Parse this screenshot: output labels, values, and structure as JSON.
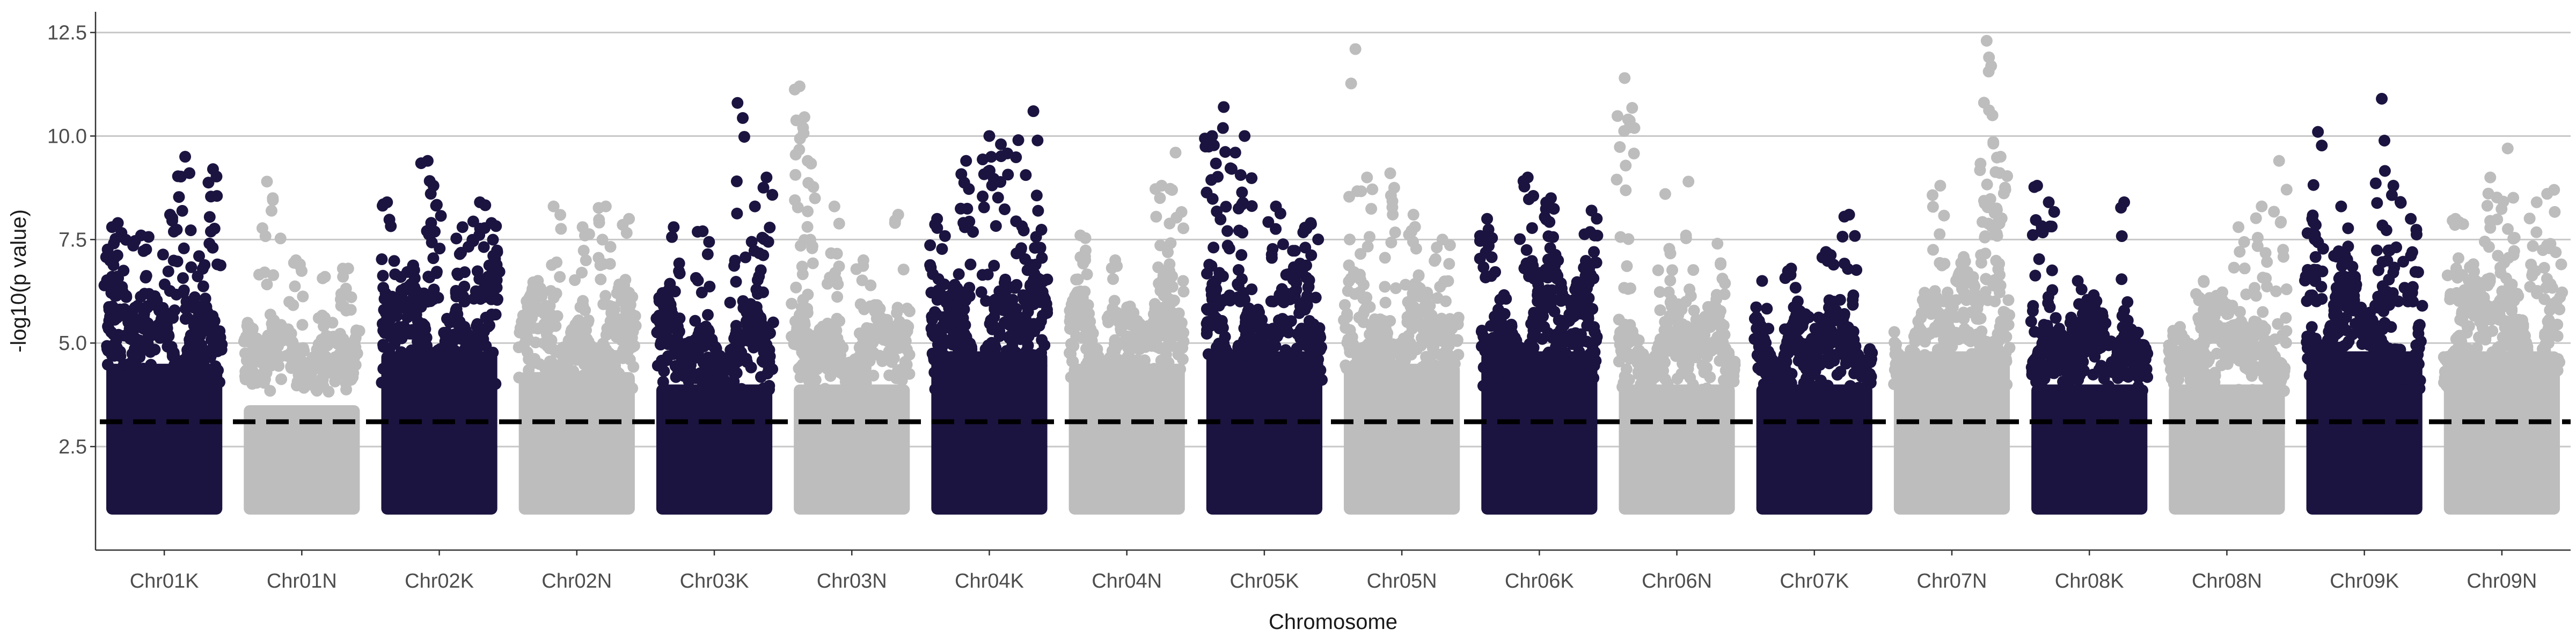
{
  "chart_data": {
    "type": "scatter",
    "title": "",
    "xlabel": "Chromosome",
    "ylabel": "-log10(p value)",
    "ylim": [
      0,
      13
    ],
    "yticks": [
      "2.5",
      "5.0",
      "7.5",
      "10.0",
      "12.5"
    ],
    "grid": "horizontal major",
    "legend": "none",
    "colors": {
      "K": "#1b1440",
      "N": "#bdbdbd",
      "threshold": "#000000"
    },
    "threshold": {
      "value": 3.1,
      "style": "dashed"
    },
    "categories": [
      "Chr01K",
      "Chr01N",
      "Chr02K",
      "Chr02N",
      "Chr03K",
      "Chr03N",
      "Chr04K",
      "Chr04N",
      "Chr05K",
      "Chr05N",
      "Chr06K",
      "Chr06N",
      "Chr07K",
      "Chr07N",
      "Chr08K",
      "Chr08N",
      "Chr09K",
      "Chr09N"
    ],
    "series": [
      {
        "values": [
          {
            "c": "Chr01K",
            "dense_max": 6.0,
            "max": 9.5,
            "peaks": [
              [
                0.05,
                7.8
              ],
              [
                0.1,
                7.9
              ],
              [
                0.3,
                7.6
              ],
              [
                0.55,
                8.1
              ],
              [
                0.68,
                9.5
              ],
              [
                0.92,
                9.2
              ],
              [
                0.8,
                7.1
              ]
            ]
          },
          {
            "c": "Chr01N",
            "dense_max": 5.0,
            "max": 9.0,
            "peaks": [
              [
                0.2,
                8.9
              ],
              [
                0.25,
                8.5
              ],
              [
                0.45,
                7.0
              ],
              [
                0.7,
                6.6
              ],
              [
                0.9,
                6.8
              ]
            ]
          },
          {
            "c": "Chr02K",
            "dense_max": 6.5,
            "max": 9.4,
            "peaks": [
              [
                0.05,
                8.4
              ],
              [
                0.4,
                9.4
              ],
              [
                0.45,
                8.8
              ],
              [
                0.7,
                7.8
              ],
              [
                0.85,
                8.4
              ],
              [
                0.95,
                7.9
              ]
            ]
          },
          {
            "c": "Chr02N",
            "dense_max": 5.8,
            "max": 8.3,
            "peaks": [
              [
                0.3,
                8.3
              ],
              [
                0.55,
                7.8
              ],
              [
                0.75,
                8.3
              ],
              [
                0.95,
                8.0
              ]
            ]
          },
          {
            "c": "Chr03K",
            "dense_max": 5.5,
            "max": 10.8,
            "peaks": [
              [
                0.15,
                7.8
              ],
              [
                0.4,
                7.7
              ],
              [
                0.7,
                10.8
              ],
              [
                0.85,
                8.3
              ],
              [
                0.95,
                9.0
              ]
            ]
          },
          {
            "c": "Chr03N",
            "dense_max": 5.5,
            "max": 11.2,
            "peaks": [
              [
                0.05,
                11.2
              ],
              [
                0.08,
                10.2
              ],
              [
                0.12,
                9.4
              ],
              [
                0.35,
                8.3
              ],
              [
                0.6,
                7.0
              ],
              [
                0.9,
                8.1
              ]
            ]
          },
          {
            "c": "Chr04K",
            "dense_max": 6.5,
            "max": 10.6,
            "peaks": [
              [
                0.05,
                8.0
              ],
              [
                0.3,
                9.4
              ],
              [
                0.5,
                10.0
              ],
              [
                0.6,
                9.8
              ],
              [
                0.75,
                9.9
              ],
              [
                0.88,
                10.6
              ]
            ]
          },
          {
            "c": "Chr04N",
            "dense_max": 6.0,
            "max": 9.6,
            "peaks": [
              [
                0.1,
                7.6
              ],
              [
                0.4,
                7.0
              ],
              [
                0.8,
                8.8
              ],
              [
                0.92,
                9.6
              ]
            ]
          },
          {
            "c": "Chr05K",
            "dense_max": 6.5,
            "max": 10.7,
            "peaks": [
              [
                0.05,
                10.0
              ],
              [
                0.15,
                10.7
              ],
              [
                0.25,
                9.6
              ],
              [
                0.33,
                10.0
              ],
              [
                0.6,
                8.3
              ],
              [
                0.9,
                7.9
              ]
            ]
          },
          {
            "c": "Chr05N",
            "dense_max": 6.0,
            "max": 12.1,
            "peaks": [
              [
                0.1,
                12.1
              ],
              [
                0.2,
                9.0
              ],
              [
                0.4,
                9.1
              ],
              [
                0.6,
                8.1
              ],
              [
                0.85,
                7.5
              ]
            ]
          },
          {
            "c": "Chr06K",
            "dense_max": 7.0,
            "max": 9.0,
            "peaks": [
              [
                0.05,
                8.0
              ],
              [
                0.4,
                9.0
              ],
              [
                0.6,
                8.5
              ],
              [
                0.95,
                8.2
              ]
            ]
          },
          {
            "c": "Chr06N",
            "dense_max": 5.5,
            "max": 11.4,
            "peaks": [
              [
                0.05,
                11.4
              ],
              [
                0.08,
                10.4
              ],
              [
                0.4,
                8.6
              ],
              [
                0.6,
                8.9
              ],
              [
                0.85,
                7.4
              ]
            ]
          },
          {
            "c": "Chr07K",
            "dense_max": 5.5,
            "max": 8.1,
            "peaks": [
              [
                0.05,
                6.5
              ],
              [
                0.3,
                6.8
              ],
              [
                0.6,
                7.2
              ],
              [
                0.8,
                8.1
              ]
            ]
          },
          {
            "c": "Chr07N",
            "dense_max": 6.5,
            "max": 12.3,
            "peaks": [
              [
                0.4,
                8.8
              ],
              [
                0.8,
                12.3
              ],
              [
                0.82,
                11.9
              ],
              [
                0.85,
                10.5
              ],
              [
                0.92,
                9.5
              ]
            ]
          },
          {
            "c": "Chr08K",
            "dense_max": 5.5,
            "max": 8.8,
            "peaks": [
              [
                0.05,
                8.8
              ],
              [
                0.15,
                8.4
              ],
              [
                0.4,
                6.5
              ],
              [
                0.8,
                8.4
              ]
            ]
          },
          {
            "c": "Chr08N",
            "dense_max": 5.5,
            "max": 9.4,
            "peaks": [
              [
                0.3,
                6.5
              ],
              [
                0.6,
                7.8
              ],
              [
                0.8,
                8.3
              ],
              [
                0.95,
                9.4
              ]
            ]
          },
          {
            "c": "Chr09K",
            "dense_max": 6.5,
            "max": 10.9,
            "peaks": [
              [
                0.05,
                8.0
              ],
              [
                0.1,
                10.1
              ],
              [
                0.3,
                8.3
              ],
              [
                0.65,
                10.9
              ],
              [
                0.75,
                8.8
              ],
              [
                0.9,
                8.0
              ]
            ]
          },
          {
            "c": "Chr09N",
            "dense_max": 6.5,
            "max": 9.7,
            "peaks": [
              [
                0.1,
                8.0
              ],
              [
                0.4,
                9.0
              ],
              [
                0.55,
                9.7
              ],
              [
                0.8,
                8.4
              ],
              [
                0.95,
                8.7
              ]
            ]
          }
        ]
      }
    ]
  }
}
